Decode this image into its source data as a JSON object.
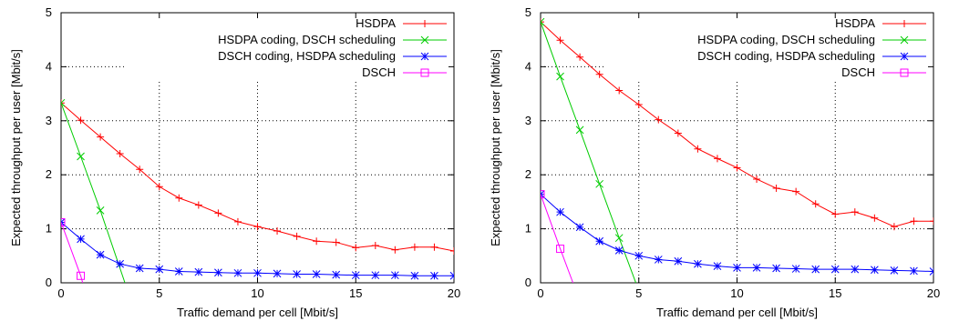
{
  "chart_data": [
    {
      "type": "line",
      "title": "",
      "xlabel": "Traffic demand per cell [Mbit/s]",
      "ylabel": "Expected throughput per user [Mbit/s]",
      "xlim": [
        0,
        20
      ],
      "ylim": [
        0,
        5
      ],
      "xticks": [
        0,
        5,
        10,
        15,
        20
      ],
      "yticks": [
        0,
        1,
        2,
        3,
        4,
        5
      ],
      "grid": true,
      "legend_position": "top-right",
      "series": [
        {
          "name": "HSDPA",
          "color": "#ff0000",
          "marker": "plus",
          "x": [
            0,
            1,
            2,
            3,
            4,
            5,
            6,
            7,
            8,
            9,
            10,
            11,
            12,
            13,
            14,
            15,
            16,
            17,
            18,
            19,
            20
          ],
          "y": [
            3.33,
            3.01,
            2.7,
            2.39,
            2.1,
            1.78,
            1.57,
            1.44,
            1.29,
            1.13,
            1.04,
            0.96,
            0.86,
            0.77,
            0.75,
            0.65,
            0.69,
            0.61,
            0.66,
            0.66,
            0.59
          ]
        },
        {
          "name": "HSDPA coding, DSCH scheduling",
          "color": "#00cc00",
          "marker": "cross",
          "x": [
            0,
            1,
            2,
            3.25
          ],
          "y": [
            3.33,
            2.34,
            1.34,
            0
          ]
        },
        {
          "name": "DSCH coding, HSDPA scheduling",
          "color": "#0000ff",
          "marker": "star",
          "x": [
            0,
            1,
            2,
            3,
            4,
            5,
            6,
            7,
            8,
            9,
            10,
            11,
            12,
            13,
            14,
            15,
            16,
            17,
            18,
            19,
            20
          ],
          "y": [
            1.12,
            0.81,
            0.52,
            0.35,
            0.27,
            0.25,
            0.21,
            0.2,
            0.19,
            0.18,
            0.18,
            0.17,
            0.16,
            0.16,
            0.15,
            0.14,
            0.14,
            0.14,
            0.13,
            0.13,
            0.13
          ]
        },
        {
          "name": "DSCH",
          "color": "#ff00ff",
          "marker": "square",
          "x": [
            0,
            1,
            1.1
          ],
          "y": [
            1.12,
            0.13,
            0
          ]
        }
      ]
    },
    {
      "type": "line",
      "title": "",
      "xlabel": "Traffic demand per cell [Mbit/s]",
      "ylabel": "Expected throughput per user [Mbit/s]",
      "xlim": [
        0,
        20
      ],
      "ylim": [
        0,
        5
      ],
      "xticks": [
        0,
        5,
        10,
        15,
        20
      ],
      "yticks": [
        0,
        1,
        2,
        3,
        4,
        5
      ],
      "grid": true,
      "legend_position": "top-right",
      "series": [
        {
          "name": "HSDPA",
          "color": "#ff0000",
          "marker": "plus",
          "x": [
            0,
            1,
            2,
            3,
            4,
            5,
            6,
            7,
            8,
            9,
            10,
            11,
            12,
            13,
            14,
            15,
            16,
            17,
            18,
            19,
            20
          ],
          "y": [
            4.83,
            4.49,
            4.18,
            3.86,
            3.56,
            3.3,
            3.02,
            2.77,
            2.48,
            2.3,
            2.13,
            1.92,
            1.75,
            1.69,
            1.46,
            1.27,
            1.31,
            1.2,
            1.04,
            1.14,
            1.14
          ]
        },
        {
          "name": "HSDPA coding, DSCH scheduling",
          "color": "#00cc00",
          "marker": "cross",
          "x": [
            0,
            1,
            2,
            3,
            4,
            4.85
          ],
          "y": [
            4.83,
            3.82,
            2.83,
            1.83,
            0.83,
            0
          ]
        },
        {
          "name": "DSCH coding, HSDPA scheduling",
          "color": "#0000ff",
          "marker": "star",
          "x": [
            0,
            1,
            2,
            3,
            4,
            5,
            6,
            7,
            8,
            9,
            10,
            11,
            12,
            13,
            14,
            15,
            16,
            17,
            18,
            19,
            20
          ],
          "y": [
            1.64,
            1.31,
            1.03,
            0.77,
            0.6,
            0.5,
            0.43,
            0.4,
            0.35,
            0.31,
            0.28,
            0.28,
            0.27,
            0.26,
            0.25,
            0.25,
            0.25,
            0.24,
            0.23,
            0.22,
            0.21
          ]
        },
        {
          "name": "DSCH",
          "color": "#ff00ff",
          "marker": "square",
          "x": [
            0,
            1,
            1.65
          ],
          "y": [
            1.64,
            0.63,
            0
          ]
        }
      ]
    }
  ]
}
